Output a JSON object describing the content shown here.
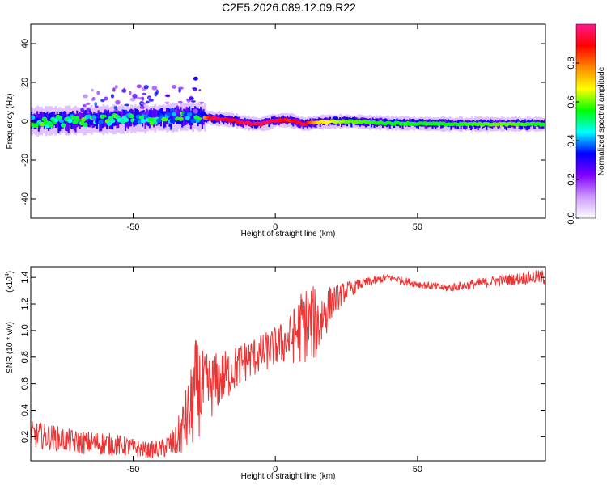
{
  "title": "C2E5.2026.089.12.09.R22",
  "chart_data": [
    {
      "type": "heatmap",
      "xlabel": "Height of straight line (km)",
      "ylabel": "Frequency (Hz)",
      "xlim": [
        -86,
        95
      ],
      "ylim": [
        -50,
        50
      ],
      "xticks": [
        -50,
        0,
        50
      ],
      "yticks": [
        -40,
        -20,
        0,
        20,
        40
      ],
      "grid": false,
      "colorbar": {
        "label": "Normalized spectral amplitude",
        "range": [
          0,
          1
        ],
        "ticks": [
          "0.0",
          "0.2",
          "0.4",
          "0.6",
          "0.8"
        ],
        "colors": [
          "#ffffff",
          "#cc99ff",
          "#7f00ff",
          "#0000ff",
          "#00ffff",
          "#00ff00",
          "#ffff00",
          "#ff8800",
          "#ff0000",
          "#ff1a8c"
        ]
      },
      "ridge": {
        "x": [
          -86,
          -70,
          -55,
          -45,
          -35,
          -28,
          -22,
          -15,
          -10,
          -5,
          0,
          5,
          10,
          15,
          25,
          40,
          60,
          80,
          95
        ],
        "y": [
          0,
          0.5,
          1,
          1.5,
          2,
          2.5,
          1.5,
          0.5,
          -1,
          -1.5,
          0.5,
          0.5,
          -1.5,
          -0.5,
          0,
          -1,
          -1.5,
          -1.5,
          -1.5
        ],
        "amplitude": [
          0.4,
          0.45,
          0.45,
          0.45,
          0.5,
          0.55,
          0.95,
          0.9,
          0.95,
          0.95,
          0.95,
          0.85,
          0.95,
          0.7,
          0.6,
          0.55,
          0.55,
          0.6,
          0.55
        ]
      }
    },
    {
      "type": "line",
      "xlabel": "Height of straight line (km)",
      "ylabel": "SNR (10 * v/v)",
      "y_multiplier": "(x10",
      "y_multiplier_exp": "4",
      "y_multiplier_close": ")",
      "xlim": [
        -86,
        95
      ],
      "ylim": [
        0.02,
        1.48
      ],
      "xticks": [
        -50,
        0,
        50
      ],
      "yticks": [
        0.2,
        0.4,
        0.6,
        0.8,
        1.0,
        1.2,
        1.4
      ],
      "ytick_labels": [
        "0.2",
        "0.4",
        "0.6",
        "0.8",
        "1.0",
        "1.2",
        "1.4"
      ],
      "color": "#ee3333",
      "series": [
        {
          "x": [
            -86,
            -80,
            -70,
            -60,
            -50,
            -45,
            -40,
            -35,
            -30,
            -28,
            -25,
            -20,
            -15,
            -10,
            -5,
            0,
            5,
            10,
            15,
            20,
            25,
            30,
            40,
            50,
            60,
            70,
            80,
            90,
            95
          ],
          "values": [
            0.22,
            0.2,
            0.16,
            0.15,
            0.12,
            0.1,
            0.11,
            0.16,
            0.38,
            0.55,
            0.55,
            0.62,
            0.7,
            0.78,
            0.82,
            0.88,
            0.93,
            1.05,
            1.05,
            1.22,
            1.3,
            1.35,
            1.4,
            1.35,
            1.32,
            1.35,
            1.38,
            1.4,
            1.4
          ],
          "noise": [
            0.1,
            0.1,
            0.09,
            0.09,
            0.07,
            0.06,
            0.07,
            0.12,
            0.3,
            0.4,
            0.28,
            0.22,
            0.18,
            0.16,
            0.15,
            0.15,
            0.18,
            0.3,
            0.28,
            0.12,
            0.07,
            0.04,
            0.03,
            0.03,
            0.03,
            0.04,
            0.04,
            0.05,
            0.06
          ]
        }
      ]
    }
  ]
}
